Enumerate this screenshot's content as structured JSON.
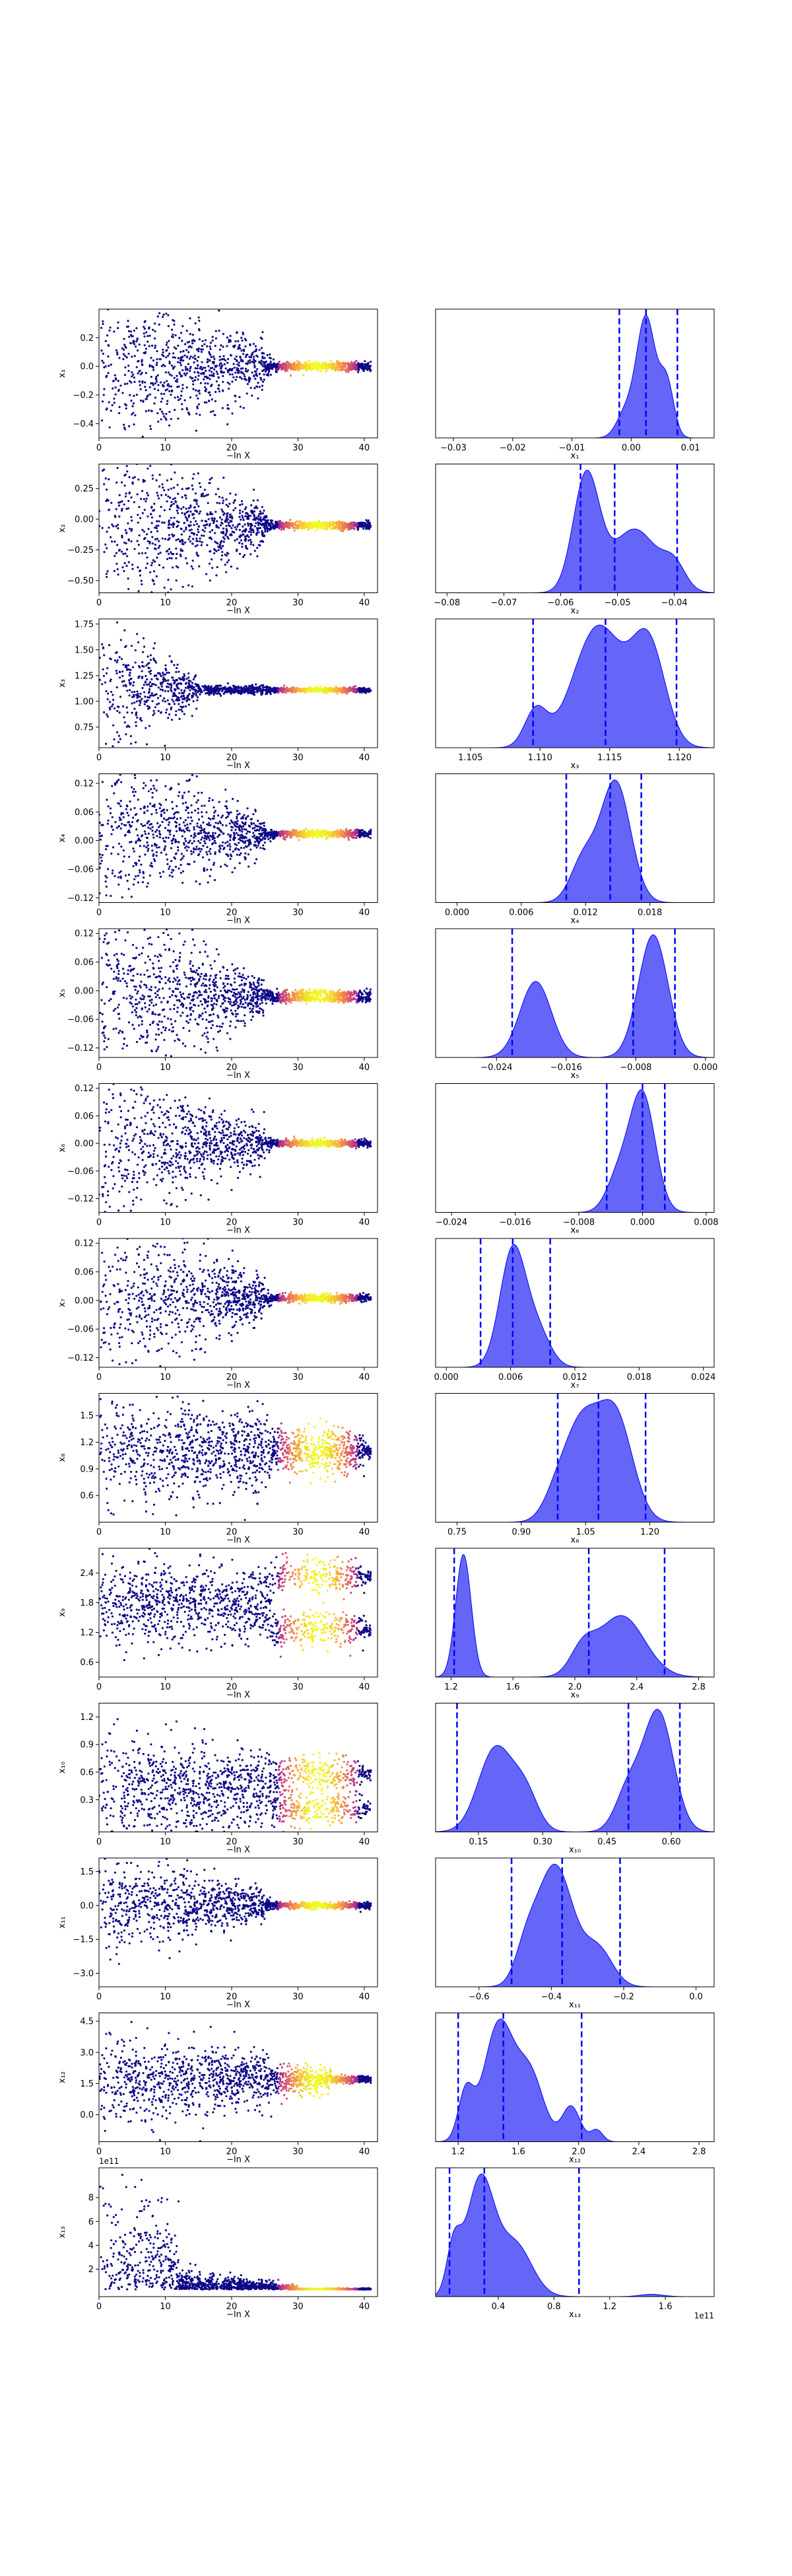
{
  "figure": {
    "description_type": "trace_and_posterior_grid",
    "trace_color_scale": [
      "#0d0887",
      "#7e03a8",
      "#cc4778",
      "#f89540",
      "#f0f921"
    ],
    "posterior_fill_color": "#3f3ff5",
    "posterior_line_color": "#0000ff",
    "quantile_line_color": "#0000ff"
  },
  "chart_data": [
    {
      "type": "scatter",
      "panel": "trace",
      "row": 1,
      "xlabel": "−ln X",
      "ylabel": "x₁",
      "xlim": [
        0,
        42
      ],
      "ylim": [
        -0.5,
        0.4
      ],
      "xticks": [
        0,
        10,
        20,
        30,
        40
      ],
      "yticks": [
        -0.4,
        -0.2,
        0.0,
        0.2
      ],
      "ytick_labels": [
        "−0.4",
        "−0.2",
        "0.0",
        "0.2"
      ],
      "spread_start": 0.3,
      "spread_mid": 0.08,
      "converge_at": 25,
      "center": 0.0,
      "bimodal": []
    },
    {
      "type": "area",
      "panel": "posterior",
      "row": 1,
      "xlabel": "x₁",
      "xlim": [
        -0.033,
        0.014
      ],
      "xticks": [
        -0.03,
        -0.02,
        -0.01,
        0.0,
        0.01
      ],
      "xtick_labels": [
        "−0.03",
        "−0.02",
        "−0.01",
        "0.00",
        "0.01"
      ],
      "quantiles": [
        -0.002,
        0.0025,
        0.0078
      ],
      "components": [
        [
          0.0025,
          0.0016,
          1.0
        ],
        [
          0.006,
          0.0012,
          0.45
        ],
        [
          -0.001,
          0.0015,
          0.2
        ]
      ]
    },
    {
      "type": "scatter",
      "panel": "trace",
      "row": 2,
      "xlabel": "−ln X",
      "ylabel": "x₂",
      "xlim": [
        0,
        42
      ],
      "ylim": [
        -0.6,
        0.45
      ],
      "xticks": [
        0,
        10,
        20,
        30,
        40
      ],
      "yticks": [
        -0.5,
        -0.25,
        0.0,
        0.25
      ],
      "ytick_labels": [
        "−0.50",
        "−0.25",
        "0.00",
        "0.25"
      ],
      "spread_start": 0.4,
      "spread_mid": 0.08,
      "converge_at": 25,
      "center": -0.05,
      "bimodal": []
    },
    {
      "type": "area",
      "panel": "posterior",
      "row": 2,
      "xlabel": "x₂",
      "xlim": [
        -0.082,
        -0.033
      ],
      "xticks": [
        -0.08,
        -0.07,
        -0.06,
        -0.05,
        -0.04
      ],
      "xtick_labels": [
        "−0.08",
        "−0.07",
        "−0.06",
        "−0.05",
        "−0.04"
      ],
      "quantiles": [
        -0.0565,
        -0.0505,
        -0.0395
      ],
      "components": [
        [
          -0.0555,
          0.0023,
          1.0
        ],
        [
          -0.047,
          0.004,
          0.55
        ],
        [
          -0.04,
          0.002,
          0.2
        ]
      ]
    },
    {
      "type": "scatter",
      "panel": "trace",
      "row": 3,
      "xlabel": "−ln X",
      "ylabel": "x₃",
      "xlim": [
        0,
        42
      ],
      "ylim": [
        0.55,
        1.8
      ],
      "xticks": [
        0,
        10,
        20,
        30,
        40
      ],
      "yticks": [
        0.75,
        1.0,
        1.25,
        1.5,
        1.75
      ],
      "ytick_labels": [
        "0.75",
        "1.00",
        "1.25",
        "1.50",
        "1.75"
      ],
      "spread_start": 0.35,
      "spread_mid": 0.06,
      "converge_at": 15,
      "center": 1.11,
      "bimodal": []
    },
    {
      "type": "area",
      "panel": "posterior",
      "row": 3,
      "xlabel": "x₃",
      "xlim": [
        1.1025,
        1.1225
      ],
      "xticks": [
        1.105,
        1.11,
        1.115,
        1.12
      ],
      "xtick_labels": [
        "1.105",
        "1.110",
        "1.115",
        "1.120"
      ],
      "quantiles": [
        1.1095,
        1.1147,
        1.1198
      ],
      "components": [
        [
          1.1142,
          0.0018,
          1.0
        ],
        [
          1.1178,
          0.0012,
          0.82
        ],
        [
          1.1097,
          0.0008,
          0.3
        ]
      ]
    },
    {
      "type": "scatter",
      "panel": "trace",
      "row": 4,
      "xlabel": "−ln X",
      "ylabel": "x₄",
      "xlim": [
        0,
        42
      ],
      "ylim": [
        -0.13,
        0.14
      ],
      "xticks": [
        0,
        10,
        20,
        30,
        40
      ],
      "yticks": [
        -0.12,
        -0.06,
        0.0,
        0.06,
        0.12
      ],
      "ytick_labels": [
        "−0.12",
        "−0.06",
        "0.00",
        "0.06",
        "0.12"
      ],
      "spread_start": 0.08,
      "spread_mid": 0.02,
      "converge_at": 25,
      "center": 0.014,
      "bimodal": []
    },
    {
      "type": "area",
      "panel": "posterior",
      "row": 4,
      "xlabel": "x₄",
      "xlim": [
        -0.002,
        0.024
      ],
      "xticks": [
        0.0,
        0.006,
        0.012,
        0.018
      ],
      "xtick_labels": [
        "0.000",
        "0.006",
        "0.012",
        "0.018"
      ],
      "quantiles": [
        0.0102,
        0.0143,
        0.0172
      ],
      "components": [
        [
          0.0148,
          0.0014,
          1.0
        ],
        [
          0.0118,
          0.0012,
          0.35
        ]
      ]
    },
    {
      "type": "scatter",
      "panel": "trace",
      "row": 5,
      "xlabel": "−ln X",
      "ylabel": "x₅",
      "xlim": [
        0,
        42
      ],
      "ylim": [
        -0.14,
        0.13
      ],
      "xticks": [
        0,
        10,
        20,
        30,
        40
      ],
      "yticks": [
        -0.12,
        -0.06,
        0.0,
        0.06,
        0.12
      ],
      "ytick_labels": [
        "−0.12",
        "−0.06",
        "0.00",
        "0.06",
        "0.12"
      ],
      "spread_start": 0.09,
      "spread_mid": 0.02,
      "converge_at": 25,
      "center": -0.01,
      "bimodal": [
        -0.006,
        -0.018
      ]
    },
    {
      "type": "area",
      "panel": "posterior",
      "row": 5,
      "xlabel": "x₅",
      "xlim": [
        -0.031,
        0.001
      ],
      "xticks": [
        -0.024,
        -0.016,
        -0.008,
        0.0
      ],
      "xtick_labels": [
        "−0.024",
        "−0.016",
        "−0.008",
        "0.000"
      ],
      "quantiles": [
        -0.0222,
        -0.0083,
        -0.0035
      ],
      "components": [
        [
          -0.0195,
          0.0018,
          0.62
        ],
        [
          -0.006,
          0.0017,
          1.0
        ]
      ]
    },
    {
      "type": "scatter",
      "panel": "trace",
      "row": 6,
      "xlabel": "−ln X",
      "ylabel": "x₆",
      "xlim": [
        0,
        42
      ],
      "ylim": [
        -0.15,
        0.13
      ],
      "xticks": [
        0,
        10,
        20,
        30,
        40
      ],
      "yticks": [
        -0.12,
        -0.06,
        0.0,
        0.06,
        0.12
      ],
      "ytick_labels": [
        "−0.12",
        "−0.06",
        "0.00",
        "0.06",
        "0.12"
      ],
      "spread_start": 0.09,
      "spread_mid": 0.02,
      "converge_at": 25,
      "center": 0.0,
      "bimodal": []
    },
    {
      "type": "area",
      "panel": "posterior",
      "row": 6,
      "xlabel": "x₆",
      "xlim": [
        -0.026,
        0.009
      ],
      "xticks": [
        -0.024,
        -0.016,
        -0.008,
        0.0,
        0.008
      ],
      "xtick_labels": [
        "−0.024",
        "−0.016",
        "−0.008",
        "0.000",
        "0.008"
      ],
      "quantiles": [
        -0.0045,
        0.0,
        0.0028
      ],
      "components": [
        [
          0.0,
          0.0016,
          1.0
        ],
        [
          -0.003,
          0.0015,
          0.3
        ]
      ]
    },
    {
      "type": "scatter",
      "panel": "trace",
      "row": 7,
      "xlabel": "−ln X",
      "ylabel": "x₇",
      "xlim": [
        0,
        42
      ],
      "ylim": [
        -0.14,
        0.13
      ],
      "xticks": [
        0,
        10,
        20,
        30,
        40
      ],
      "yticks": [
        -0.12,
        -0.06,
        0.0,
        0.06,
        0.12
      ],
      "ytick_labels": [
        "−0.12",
        "−0.06",
        "0.00",
        "0.06",
        "0.12"
      ],
      "spread_start": 0.09,
      "spread_mid": 0.02,
      "converge_at": 25,
      "center": 0.005,
      "bimodal": []
    },
    {
      "type": "area",
      "panel": "posterior",
      "row": 7,
      "xlabel": "x₇",
      "xlim": [
        -0.001,
        0.025
      ],
      "xticks": [
        0.0,
        0.006,
        0.012,
        0.018,
        0.024
      ],
      "xtick_labels": [
        "0.000",
        "0.006",
        "0.012",
        "0.018",
        "0.024"
      ],
      "quantiles": [
        0.0032,
        0.0062,
        0.0097
      ],
      "components": [
        [
          0.0062,
          0.0012,
          1.0
        ],
        [
          0.0085,
          0.0012,
          0.3
        ]
      ]
    },
    {
      "type": "scatter",
      "panel": "trace",
      "row": 8,
      "xlabel": "−ln X",
      "ylabel": "x₈",
      "xlim": [
        0,
        42
      ],
      "ylim": [
        0.3,
        1.75
      ],
      "xticks": [
        0,
        10,
        20,
        30,
        40
      ],
      "yticks": [
        0.6,
        0.9,
        1.2,
        1.5
      ],
      "ytick_labels": [
        "0.6",
        "0.9",
        "1.2",
        "1.5"
      ],
      "spread_start": 0.3,
      "spread_mid": 0.2,
      "converge_at": 40,
      "center": 1.1,
      "bimodal": []
    },
    {
      "type": "area",
      "panel": "posterior",
      "row": 8,
      "xlabel": "x₈",
      "xlim": [
        0.7,
        1.35
      ],
      "xticks": [
        0.75,
        0.9,
        1.05,
        1.2
      ],
      "xtick_labels": [
        "0.75",
        "0.90",
        "1.05",
        "1.20"
      ],
      "quantiles": [
        0.985,
        1.08,
        1.19
      ],
      "components": [
        [
          1.04,
          0.04,
          0.9
        ],
        [
          1.12,
          0.04,
          1.0
        ],
        [
          0.98,
          0.03,
          0.2
        ]
      ]
    },
    {
      "type": "scatter",
      "panel": "trace",
      "row": 9,
      "xlabel": "−ln X",
      "ylabel": "x₉",
      "xlim": [
        0,
        42
      ],
      "ylim": [
        0.3,
        2.9
      ],
      "xticks": [
        0,
        10,
        20,
        30,
        40
      ],
      "yticks": [
        0.6,
        1.2,
        1.8,
        2.4
      ],
      "ytick_labels": [
        "0.6",
        "1.2",
        "1.8",
        "2.4"
      ],
      "spread_start": 0.45,
      "spread_mid": 0.3,
      "converge_at": 40,
      "center": 1.8,
      "bimodal": [
        2.35,
        1.25
      ]
    },
    {
      "type": "area",
      "panel": "posterior",
      "row": 9,
      "xlabel": "x₉",
      "xlim": [
        1.1,
        2.9
      ],
      "xticks": [
        1.2,
        1.6,
        2.0,
        2.4,
        2.8
      ],
      "xtick_labels": [
        "1.2",
        "1.6",
        "2.0",
        "2.4",
        "2.8"
      ],
      "quantiles": [
        1.22,
        2.09,
        2.58
      ],
      "components": [
        [
          1.28,
          0.05,
          1.0
        ],
        [
          2.3,
          0.15,
          0.5
        ],
        [
          2.05,
          0.08,
          0.2
        ]
      ]
    },
    {
      "type": "scatter",
      "panel": "trace",
      "row": 10,
      "xlabel": "−ln X",
      "ylabel": "x₁₀",
      "xlim": [
        0,
        42
      ],
      "ylim": [
        -0.05,
        1.35
      ],
      "xticks": [
        0,
        10,
        20,
        30,
        40
      ],
      "yticks": [
        0.3,
        0.6,
        0.9,
        1.2
      ],
      "ytick_labels": [
        "0.3",
        "0.6",
        "0.9",
        "1.2"
      ],
      "spread_start": 0.3,
      "spread_mid": 0.15,
      "converge_at": 40,
      "center": 0.4,
      "bimodal": [
        0.58,
        0.2
      ]
    },
    {
      "type": "area",
      "panel": "posterior",
      "row": 10,
      "xlabel": "x₁₀",
      "xlim": [
        0.05,
        0.7
      ],
      "xticks": [
        0.15,
        0.3,
        0.45,
        0.6
      ],
      "xtick_labels": [
        "0.15",
        "0.30",
        "0.45",
        "0.60"
      ],
      "quantiles": [
        0.1,
        0.5,
        0.62
      ],
      "components": [
        [
          0.19,
          0.04,
          0.7
        ],
        [
          0.26,
          0.03,
          0.3
        ],
        [
          0.57,
          0.035,
          1.0
        ],
        [
          0.5,
          0.03,
          0.35
        ]
      ]
    },
    {
      "type": "scatter",
      "panel": "trace",
      "row": 11,
      "xlabel": "−ln X",
      "ylabel": "x₁₁",
      "xlim": [
        0,
        42
      ],
      "ylim": [
        -3.6,
        2.1
      ],
      "xticks": [
        0,
        10,
        20,
        30,
        40
      ],
      "yticks": [
        -3.0,
        -1.5,
        0.0,
        1.5
      ],
      "ytick_labels": [
        "−3.0",
        "−1.5",
        "0.0",
        "1.5"
      ],
      "spread_start": 1.1,
      "spread_mid": 0.4,
      "converge_at": 25,
      "center": 0.0,
      "bimodal": []
    },
    {
      "type": "area",
      "panel": "posterior",
      "row": 11,
      "xlabel": "x₁₁",
      "xlim": [
        -0.72,
        0.05
      ],
      "xticks": [
        -0.6,
        -0.4,
        -0.2,
        0.0
      ],
      "xtick_labels": [
        "−0.6",
        "−0.4",
        "−0.2",
        "0.0"
      ],
      "quantiles": [
        -0.51,
        -0.37,
        -0.21
      ],
      "components": [
        [
          -0.39,
          0.05,
          1.0
        ],
        [
          -0.27,
          0.04,
          0.3
        ],
        [
          -0.47,
          0.03,
          0.25
        ]
      ]
    },
    {
      "type": "scatter",
      "panel": "trace",
      "row": 12,
      "xlabel": "−ln X",
      "ylabel": "x₁₂",
      "xlim": [
        0,
        42
      ],
      "ylim": [
        -1.3,
        4.9
      ],
      "xticks": [
        0,
        10,
        20,
        30,
        40
      ],
      "yticks": [
        0.0,
        1.5,
        3.0,
        4.5
      ],
      "ytick_labels": [
        "0.0",
        "1.5",
        "3.0",
        "4.5"
      ],
      "spread_start": 1.1,
      "spread_mid": 0.5,
      "converge_at": 35,
      "center": 1.7,
      "bimodal": []
    },
    {
      "type": "area",
      "panel": "posterior",
      "row": 12,
      "xlabel": "x₁₂",
      "xlim": [
        1.05,
        2.9
      ],
      "xticks": [
        1.2,
        1.6,
        2.0,
        2.4,
        2.8
      ],
      "xtick_labels": [
        "1.2",
        "1.6",
        "2.0",
        "2.4",
        "2.8"
      ],
      "quantiles": [
        1.2,
        1.5,
        2.02
      ],
      "components": [
        [
          1.47,
          0.1,
          1.0
        ],
        [
          1.68,
          0.09,
          0.55
        ],
        [
          1.25,
          0.05,
          0.4
        ],
        [
          1.95,
          0.06,
          0.3
        ],
        [
          2.12,
          0.04,
          0.1
        ]
      ]
    },
    {
      "type": "scatter",
      "panel": "trace",
      "row": 13,
      "xlabel": "−ln X",
      "ylabel": "x₁₃",
      "xlim": [
        0,
        42
      ],
      "ylim": [
        -0.3,
        10.5
      ],
      "xticks": [
        0,
        10,
        20,
        30,
        40
      ],
      "yticks": [
        2,
        4,
        6,
        8
      ],
      "ytick_labels": [
        "2",
        "4",
        "6",
        "8"
      ],
      "offset": "1e11",
      "spread_start": 2.0,
      "spread_mid": 0.2,
      "converge_at": 30,
      "center": 0.3,
      "skewed": true,
      "bimodal": []
    },
    {
      "type": "area",
      "panel": "posterior",
      "row": 13,
      "xlabel": "x₁₃",
      "xlim": [
        -0.05,
        1.95
      ],
      "xticks": [
        0.4,
        0.8,
        1.2,
        1.6
      ],
      "xtick_labels": [
        "0.4",
        "0.8",
        "1.2",
        "1.6"
      ],
      "offset": "1e11",
      "quantiles": [
        0.05,
        0.3,
        0.98
      ],
      "components": [
        [
          0.27,
          0.1,
          1.0
        ],
        [
          0.52,
          0.12,
          0.45
        ],
        [
          0.08,
          0.05,
          0.4
        ],
        [
          1.5,
          0.08,
          0.02
        ]
      ]
    }
  ]
}
